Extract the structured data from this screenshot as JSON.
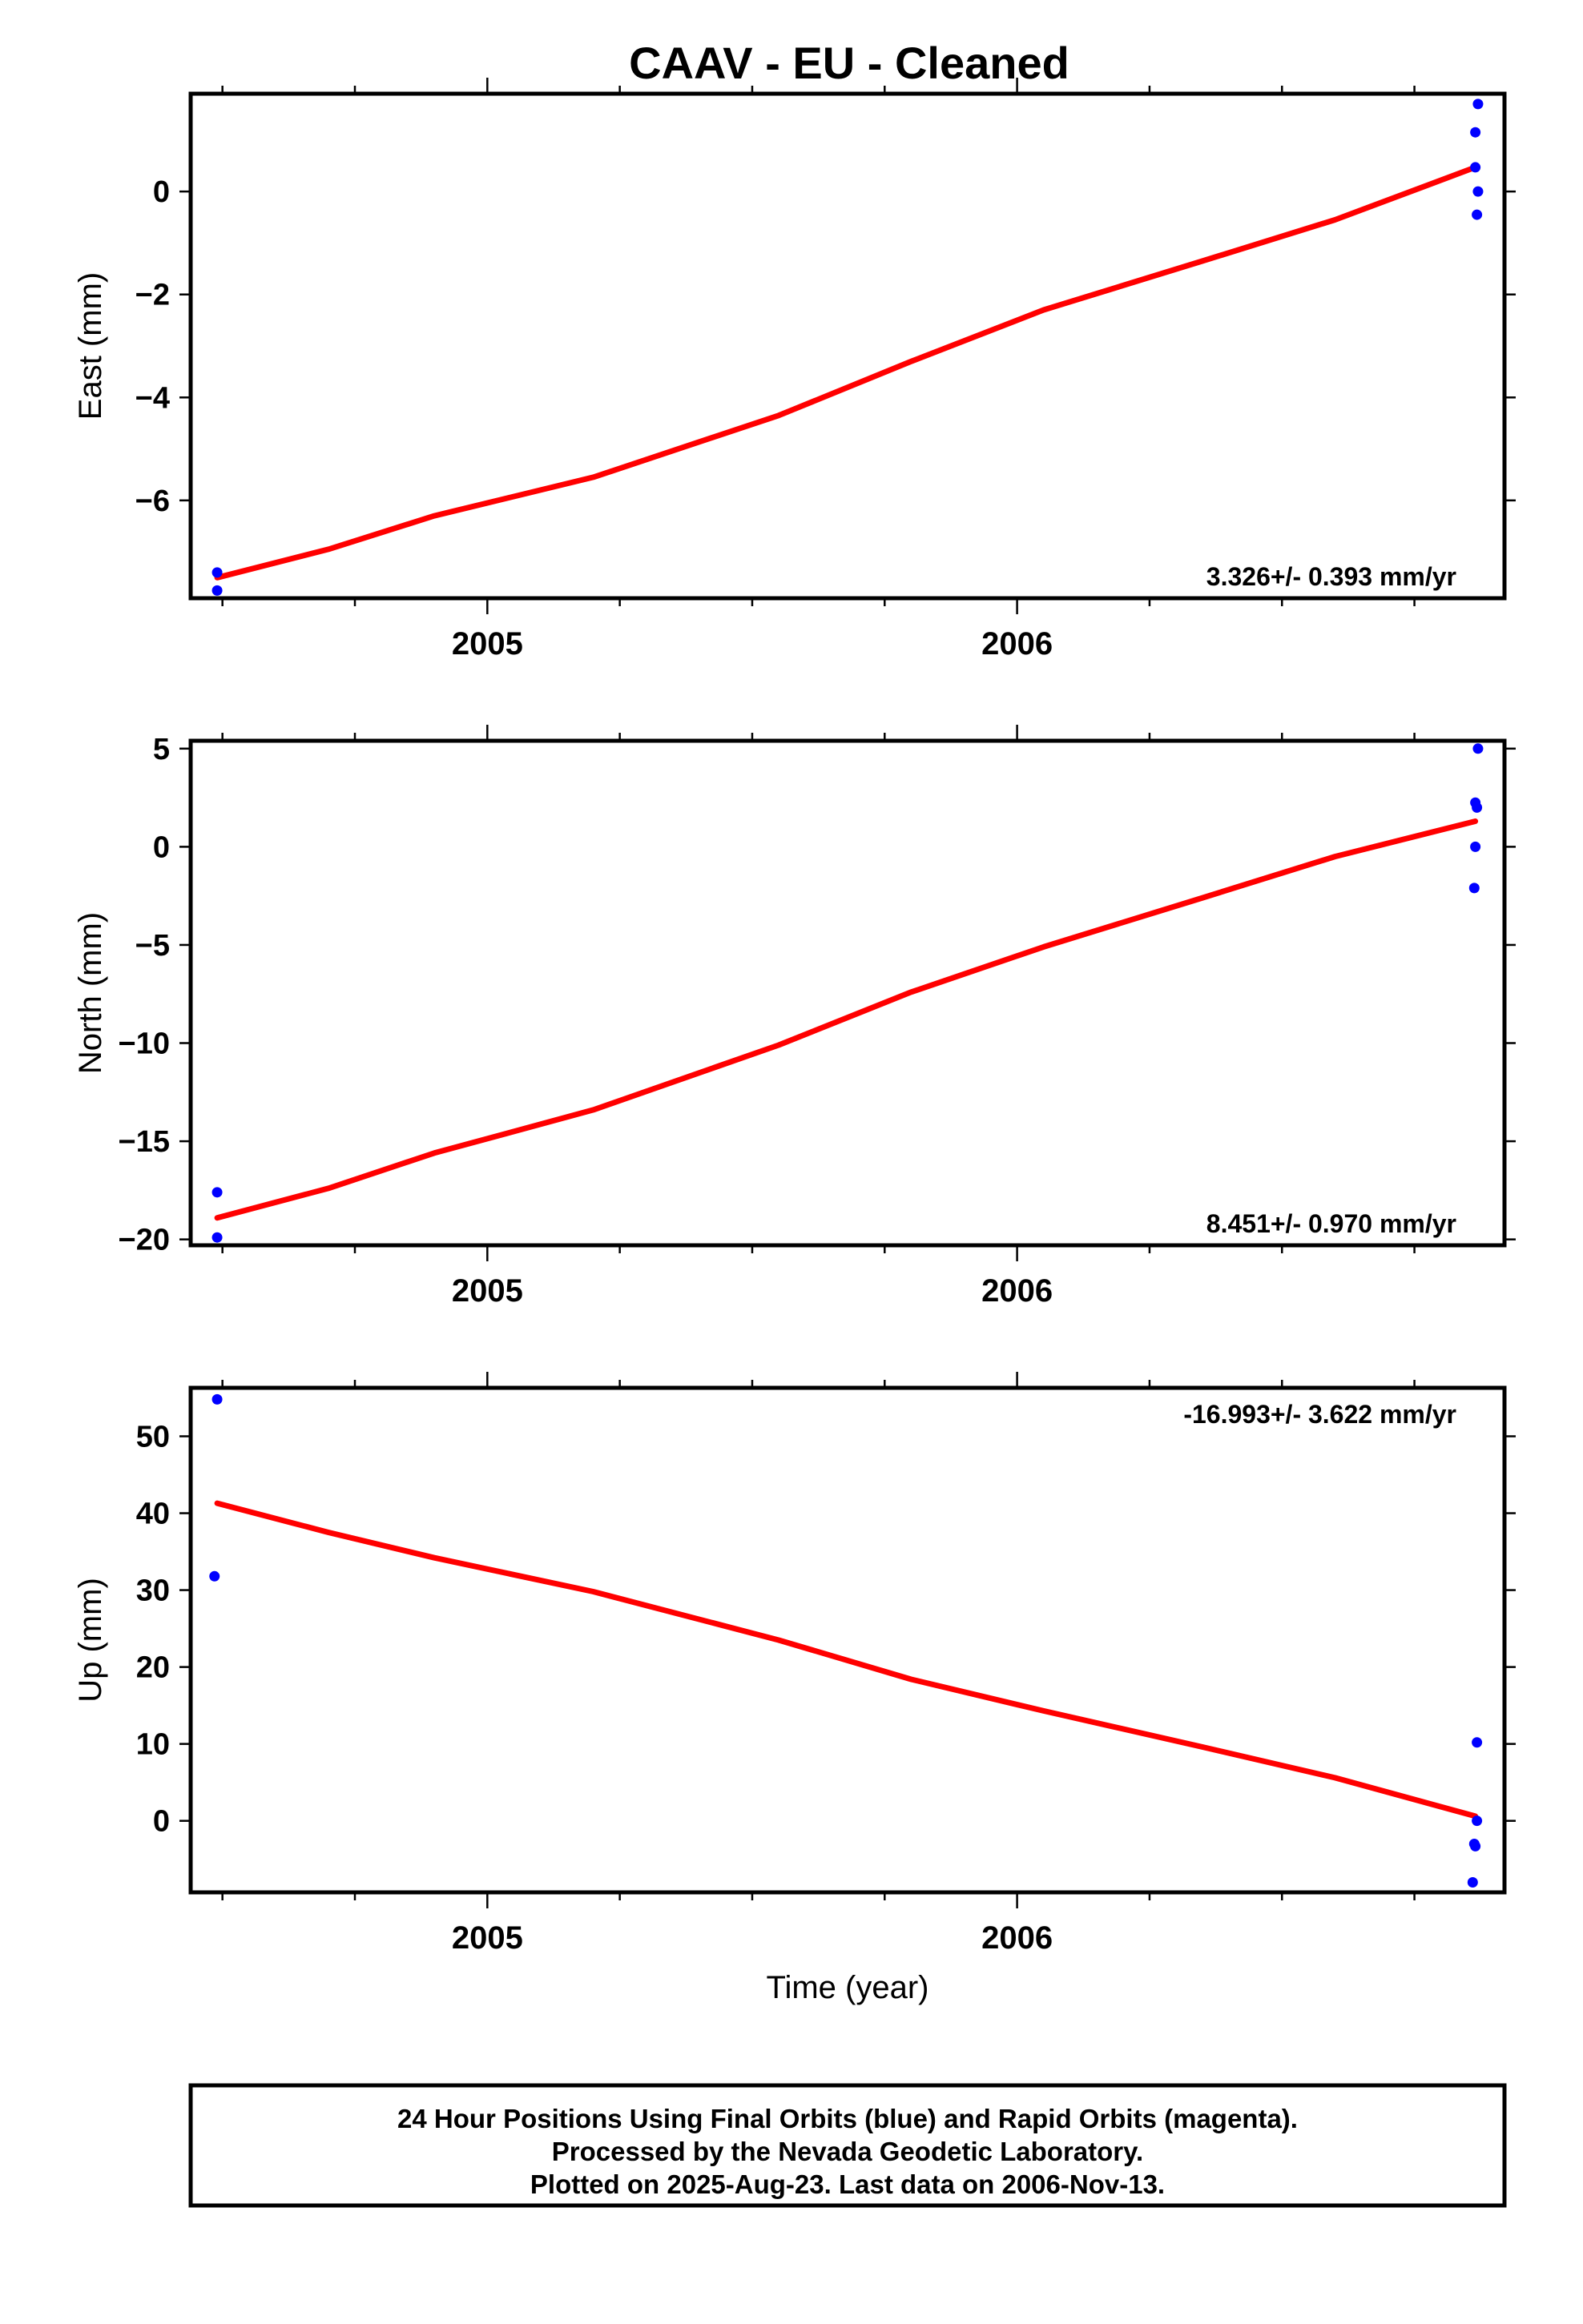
{
  "title": "CAAV  - EU - Cleaned",
  "colors": {
    "data_points": "#0000ff",
    "fit_line": "#ff0000",
    "frame": "#000000"
  },
  "chart_data": [
    {
      "type": "scatter",
      "ylabel": "East (mm)",
      "xlabel": "",
      "rate_text": "3.326+/- 0.393 mm/yr",
      "rate_position": "bottom-right",
      "xlim": [
        2004.44,
        2006.92
      ],
      "ylim": [
        -7.9,
        1.9
      ],
      "x_ticks": [
        2005,
        2006
      ],
      "y_ticks": [
        0,
        -2,
        -4,
        -6
      ],
      "y_tick_labels": [
        "0",
        "−2",
        "−4",
        "−6"
      ],
      "points": [
        {
          "x": 2004.49,
          "y": -7.4
        },
        {
          "x": 2004.49,
          "y": -7.75
        },
        {
          "x": 2006.87,
          "y": 1.7
        },
        {
          "x": 2006.865,
          "y": 1.15
        },
        {
          "x": 2006.865,
          "y": 0.47
        },
        {
          "x": 2006.87,
          "y": 0.0
        },
        {
          "x": 2006.868,
          "y": -0.45
        }
      ],
      "fit_line": [
        {
          "x": 2004.49,
          "y": -7.5
        },
        {
          "x": 2004.7,
          "y": -6.95
        },
        {
          "x": 2004.9,
          "y": -6.3
        },
        {
          "x": 2005.2,
          "y": -5.55
        },
        {
          "x": 2005.55,
          "y": -4.35
        },
        {
          "x": 2005.8,
          "y": -3.3
        },
        {
          "x": 2006.05,
          "y": -2.3
        },
        {
          "x": 2006.35,
          "y": -1.35
        },
        {
          "x": 2006.6,
          "y": -0.55
        },
        {
          "x": 2006.865,
          "y": 0.47
        }
      ]
    },
    {
      "type": "scatter",
      "ylabel": "North (mm)",
      "xlabel": "",
      "rate_text": "8.451+/- 0.970 mm/yr",
      "rate_position": "bottom-right",
      "xlim": [
        2004.44,
        2006.92
      ],
      "ylim": [
        -20.3,
        5.4
      ],
      "x_ticks": [
        2005,
        2006
      ],
      "y_ticks": [
        5,
        0,
        -5,
        -10,
        -15,
        -20
      ],
      "y_tick_labels": [
        "5",
        "0",
        "−5",
        "−10",
        "−15",
        "−20"
      ],
      "points": [
        {
          "x": 2004.49,
          "y": -17.6
        },
        {
          "x": 2004.49,
          "y": -19.9
        },
        {
          "x": 2006.87,
          "y": 5.0
        },
        {
          "x": 2006.865,
          "y": 2.25
        },
        {
          "x": 2006.868,
          "y": 2.0
        },
        {
          "x": 2006.865,
          "y": 0.0
        },
        {
          "x": 2006.863,
          "y": -2.1
        }
      ],
      "fit_line": [
        {
          "x": 2004.49,
          "y": -18.9
        },
        {
          "x": 2004.7,
          "y": -17.4
        },
        {
          "x": 2004.9,
          "y": -15.6
        },
        {
          "x": 2005.2,
          "y": -13.4
        },
        {
          "x": 2005.55,
          "y": -10.1
        },
        {
          "x": 2005.8,
          "y": -7.4
        },
        {
          "x": 2006.05,
          "y": -5.1
        },
        {
          "x": 2006.35,
          "y": -2.6
        },
        {
          "x": 2006.6,
          "y": -0.5
        },
        {
          "x": 2006.865,
          "y": 1.3
        }
      ]
    },
    {
      "type": "scatter",
      "ylabel": "Up (mm)",
      "xlabel": "Time (year)",
      "rate_text": "-16.993+/- 3.622 mm/yr",
      "rate_position": "top-right",
      "xlim": [
        2004.44,
        2006.92
      ],
      "ylim": [
        -9.3,
        56.3
      ],
      "x_ticks": [
        2005,
        2006
      ],
      "y_ticks": [
        50,
        40,
        30,
        20,
        10,
        0
      ],
      "y_tick_labels": [
        "50",
        "40",
        "30",
        "20",
        "10",
        "0"
      ],
      "points": [
        {
          "x": 2004.49,
          "y": 54.8
        },
        {
          "x": 2004.485,
          "y": 31.8
        },
        {
          "x": 2006.868,
          "y": 10.2
        },
        {
          "x": 2006.868,
          "y": 0.0
        },
        {
          "x": 2006.863,
          "y": -3.0
        },
        {
          "x": 2006.865,
          "y": -3.3
        },
        {
          "x": 2006.86,
          "y": -8.0
        }
      ],
      "fit_line": [
        {
          "x": 2004.49,
          "y": 41.3
        },
        {
          "x": 2004.7,
          "y": 37.5
        },
        {
          "x": 2004.9,
          "y": 34.2
        },
        {
          "x": 2005.2,
          "y": 29.8
        },
        {
          "x": 2005.55,
          "y": 23.5
        },
        {
          "x": 2005.8,
          "y": 18.4
        },
        {
          "x": 2006.05,
          "y": 14.3
        },
        {
          "x": 2006.35,
          "y": 9.6
        },
        {
          "x": 2006.6,
          "y": 5.6
        },
        {
          "x": 2006.865,
          "y": 0.6
        }
      ]
    }
  ],
  "footer": {
    "line1": "24 Hour Positions Using Final Orbits (blue) and Rapid Orbits (magenta).",
    "line2": "Processed by the Nevada Geodetic Laboratory.",
    "line3": "Plotted on 2025-Aug-23. Last data on 2006-Nov-13."
  }
}
